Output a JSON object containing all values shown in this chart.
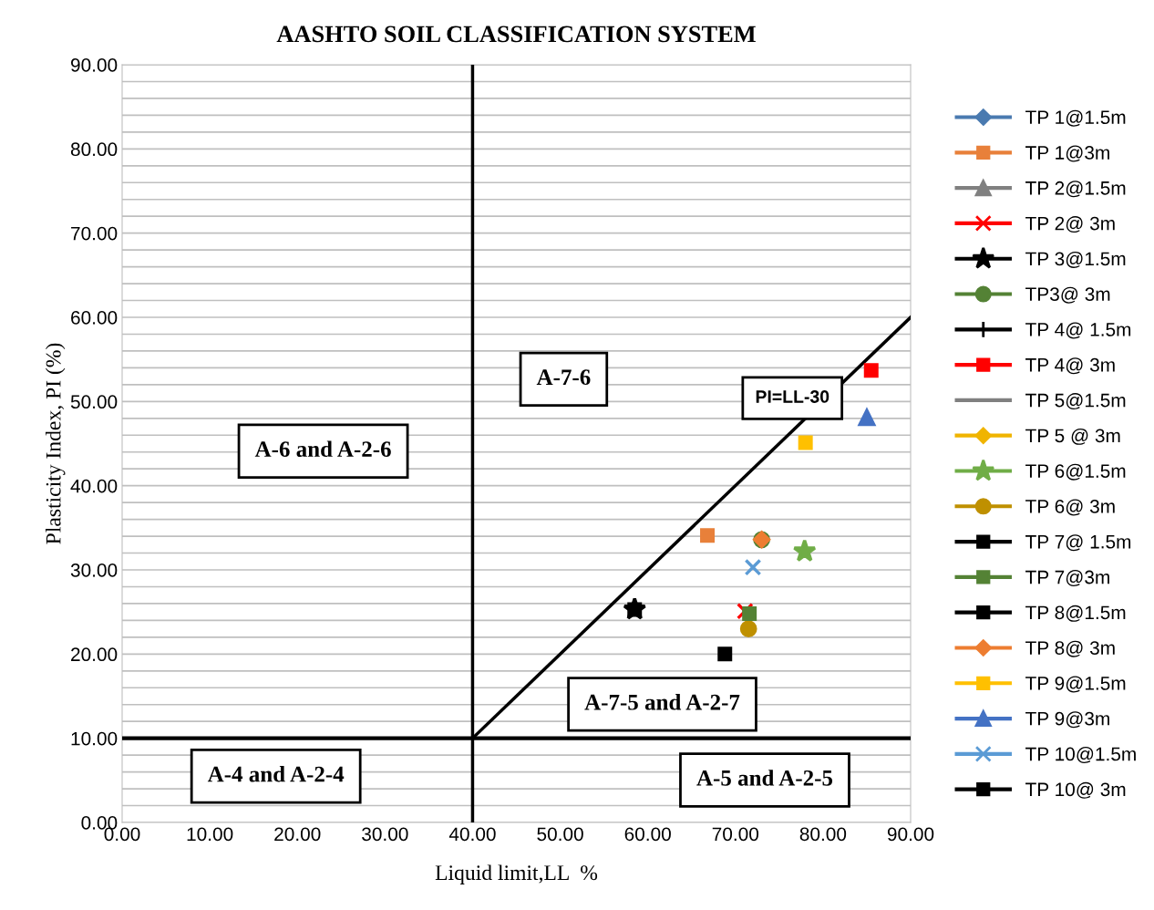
{
  "chart_data": {
    "type": "scatter",
    "title": "AASHTO SOIL CLASSIFICATION SYSTEM",
    "xlabel": "Liquid limit,LL  %",
    "ylabel": "Plasticity Index, PI (%)",
    "xlim": [
      0,
      90
    ],
    "ylim": [
      0,
      90
    ],
    "xticks": [
      {
        "value": 0,
        "label": "0.00"
      },
      {
        "value": 10,
        "label": "10.00"
      },
      {
        "value": 20,
        "label": "20.00"
      },
      {
        "value": 30,
        "label": "30.00"
      },
      {
        "value": 40,
        "label": "40.00"
      },
      {
        "value": 50,
        "label": "50.00"
      },
      {
        "value": 60,
        "label": "60.00"
      },
      {
        "value": 70,
        "label": "70.00"
      },
      {
        "value": 80,
        "label": "80.00"
      },
      {
        "value": 90,
        "label": "90.00"
      }
    ],
    "yticks": [
      {
        "value": 0,
        "label": "0.00"
      },
      {
        "value": 2,
        "label": null
      },
      {
        "value": 4,
        "label": null
      },
      {
        "value": 6,
        "label": null
      },
      {
        "value": 8,
        "label": null
      },
      {
        "value": 10,
        "label": "10.00"
      },
      {
        "value": 12,
        "label": null
      },
      {
        "value": 14,
        "label": null
      },
      {
        "value": 16,
        "label": null
      },
      {
        "value": 18,
        "label": null
      },
      {
        "value": 20,
        "label": "20.00"
      },
      {
        "value": 22,
        "label": null
      },
      {
        "value": 24,
        "label": null
      },
      {
        "value": 26,
        "label": null
      },
      {
        "value": 28,
        "label": null
      },
      {
        "value": 30,
        "label": "30.00"
      },
      {
        "value": 32,
        "label": null
      },
      {
        "value": 34,
        "label": null
      },
      {
        "value": 36,
        "label": null
      },
      {
        "value": 38,
        "label": null
      },
      {
        "value": 40,
        "label": "40.00"
      },
      {
        "value": 42,
        "label": null
      },
      {
        "value": 44,
        "label": null
      },
      {
        "value": 46,
        "label": null
      },
      {
        "value": 48,
        "label": null
      },
      {
        "value": 50,
        "label": "50.00"
      },
      {
        "value": 52,
        "label": null
      },
      {
        "value": 54,
        "label": null
      },
      {
        "value": 56,
        "label": null
      },
      {
        "value": 58,
        "label": null
      },
      {
        "value": 60,
        "label": "60.00"
      },
      {
        "value": 62,
        "label": null
      },
      {
        "value": 64,
        "label": null
      },
      {
        "value": 66,
        "label": null
      },
      {
        "value": 68,
        "label": null
      },
      {
        "value": 70,
        "label": "70.00"
      },
      {
        "value": 72,
        "label": null
      },
      {
        "value": 74,
        "label": null
      },
      {
        "value": 76,
        "label": null
      },
      {
        "value": 78,
        "label": null
      },
      {
        "value": 80,
        "label": "80.00"
      },
      {
        "value": 82,
        "label": null
      },
      {
        "value": 84,
        "label": null
      },
      {
        "value": 86,
        "label": null
      },
      {
        "value": 88,
        "label": null
      },
      {
        "value": 90,
        "label": "90.00"
      }
    ],
    "grid": "y",
    "legend": "right",
    "ref_lines": [
      {
        "axis": "x",
        "value": 40,
        "color": "#000000"
      },
      {
        "axis": "y",
        "value": 10,
        "color": "#000000"
      }
    ],
    "series": [
      {
        "name": "TP 1@1.5m",
        "color": "#4a7ab0",
        "marker": "diamond",
        "x": [
          null
        ],
        "values": [
          null
        ]
      },
      {
        "name": "TP 1@3m",
        "color": "#e8803a",
        "marker": "square",
        "x": [
          66.8
        ],
        "values": [
          34.1
        ]
      },
      {
        "name": "TP 2@1.5m",
        "color": "#808080",
        "marker": "triangle",
        "x": [
          null
        ],
        "values": [
          null
        ]
      },
      {
        "name": "TP 2@ 3m",
        "color": "#ff0000",
        "marker": "cross",
        "x": [
          71.1
        ],
        "values": [
          25.1
        ]
      },
      {
        "name": "TP 3@1.5m",
        "color": "#000000",
        "marker": "star",
        "x": [
          58.5
        ],
        "values": [
          25.3
        ]
      },
      {
        "name": "TP3@ 3m",
        "color": "#548235",
        "marker": "circle",
        "x": [
          73.0
        ],
        "values": [
          33.6
        ]
      },
      {
        "name": "TP 4@ 1.5m",
        "color": "#000000",
        "marker": "plus",
        "x": [
          null
        ],
        "values": [
          null
        ]
      },
      {
        "name": "TP 4@ 3m",
        "color": "#ff0000",
        "marker": "square",
        "x": [
          85.5
        ],
        "values": [
          53.7
        ]
      },
      {
        "name": "TP 5@1.5m",
        "color": "#808080",
        "marker": "dash",
        "x": [
          null
        ],
        "values": [
          null
        ]
      },
      {
        "name": "TP 5 @ 3m",
        "color": "#f0b400",
        "marker": "diamond",
        "x": [
          null
        ],
        "values": [
          null
        ]
      },
      {
        "name": "TP 6@1.5m",
        "color": "#70ad47",
        "marker": "star",
        "x": [
          77.9
        ],
        "values": [
          32.2
        ]
      },
      {
        "name": "TP 6@ 3m",
        "color": "#bf9000",
        "marker": "circle",
        "x": [
          71.5
        ],
        "values": [
          23.0
        ]
      },
      {
        "name": "TP 7@ 1.5m",
        "color": "#000000",
        "marker": "square",
        "x": [
          68.8
        ],
        "values": [
          20.0
        ]
      },
      {
        "name": "TP 7@3m",
        "color": "#548235",
        "marker": "square",
        "x": [
          71.6
        ],
        "values": [
          24.8
        ]
      },
      {
        "name": "TP 8@1.5m",
        "color": "#000000",
        "marker": "square",
        "x": [
          58.5
        ],
        "values": [
          25.3
        ]
      },
      {
        "name": "TP 8@ 3m",
        "color": "#ed7d31",
        "marker": "diamond",
        "x": [
          73.0
        ],
        "values": [
          33.6
        ]
      },
      {
        "name": "TP 9@1.5m",
        "color": "#ffc000",
        "marker": "square",
        "x": [
          78.0
        ],
        "values": [
          45.1
        ]
      },
      {
        "name": "TP 9@3m",
        "color": "#4472c4",
        "marker": "triangle",
        "x": [
          85.0
        ],
        "values": [
          48.1
        ]
      },
      {
        "name": "TP 10@1.5m",
        "color": "#5b9bd5",
        "marker": "cross",
        "x": [
          72.0
        ],
        "values": [
          30.3
        ]
      },
      {
        "name": "TP 10@ 3m",
        "color": "#000000",
        "marker": "square",
        "x": [
          null
        ],
        "values": [
          null
        ]
      },
      {
        "type": "line",
        "color": "#000000",
        "x": [
          40,
          90
        ],
        "values": [
          10,
          60
        ]
      }
    ],
    "annotations": [
      "A-7-6",
      "A-6 and A-2-6",
      "PI=LL-30",
      "A-7-5 and A-2-7",
      "A-4 and A-2-4",
      "A-5 and A-2-5"
    ]
  }
}
